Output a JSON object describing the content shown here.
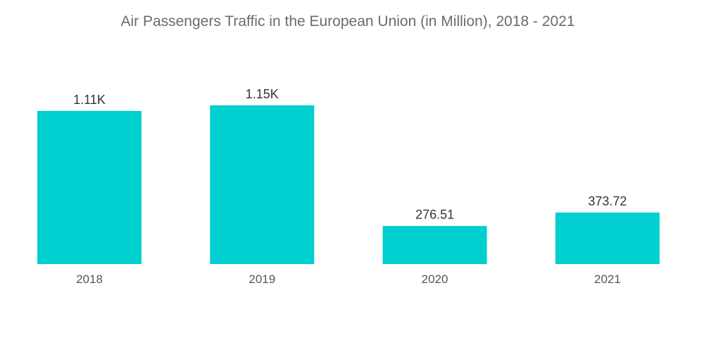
{
  "chart_data": {
    "type": "bar",
    "title": "Air Passengers Traffic in the European Union (in Million), 2018 - 2021",
    "xlabel": "",
    "ylabel": "",
    "categories": [
      "2018",
      "2019",
      "2020",
      "2021"
    ],
    "values": [
      1110,
      1150,
      276.51,
      373.72
    ],
    "data_labels": [
      "1.11K",
      "1.15K",
      "276.51",
      "373.72"
    ],
    "ylim": [
      0,
      1150
    ],
    "grid": false,
    "legend": "none",
    "bar_color": "#00cfcf"
  }
}
